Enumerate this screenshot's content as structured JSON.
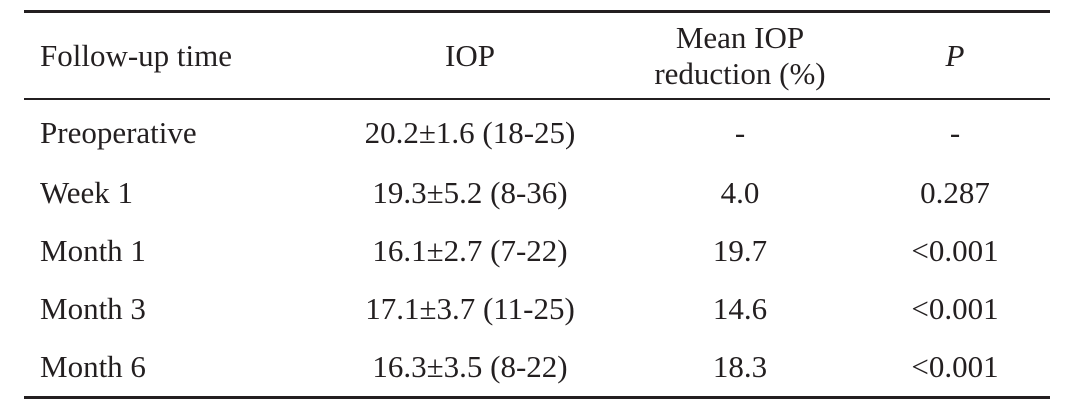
{
  "table": {
    "headers": {
      "time": "Follow-up time",
      "iop": "IOP",
      "reduction_line1": "Mean IOP",
      "reduction_line2": "reduction (%)",
      "p": "P"
    },
    "rows": [
      {
        "time": "Preoperative",
        "iop": "20.2±1.6 (18-25)",
        "reduction": "-",
        "p": "-"
      },
      {
        "time": "Week 1",
        "iop": "19.3±5.2 (8-36)",
        "reduction": "4.0",
        "p": "0.287"
      },
      {
        "time": "Month 1",
        "iop": "16.1±2.7 (7-22)",
        "reduction": "19.7",
        "p": "<0.001"
      },
      {
        "time": "Month 3",
        "iop": "17.1±3.7 (11-25)",
        "reduction": "14.6",
        "p": "<0.001"
      },
      {
        "time": "Month 6",
        "iop": "16.3±3.5 (8-22)",
        "reduction": "18.3",
        "p": "<0.001"
      }
    ]
  }
}
